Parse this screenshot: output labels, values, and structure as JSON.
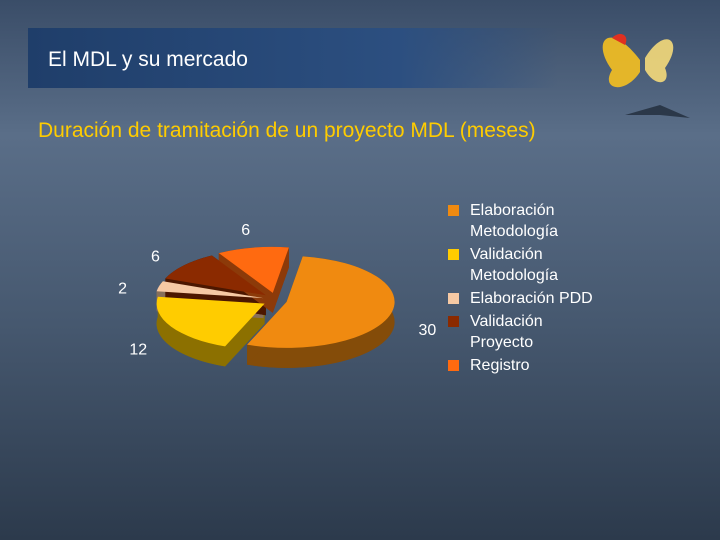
{
  "header": {
    "title": "El MDL y su mercado"
  },
  "chart_data": {
    "type": "pie",
    "title": "Duración de tramitación de un proyecto MDL (meses)",
    "categories": [
      "Elaboración Metodología",
      "Validación Metodología",
      "Elaboración PDD",
      "Validación Proyecto",
      "Registro"
    ],
    "values": [
      30,
      12,
      2,
      6,
      6
    ],
    "colors": [
      "#f08a10",
      "#ffcc00",
      "#f6c9a4",
      "#8b2a00",
      "#ff6a10"
    ],
    "legend": "right"
  }
}
